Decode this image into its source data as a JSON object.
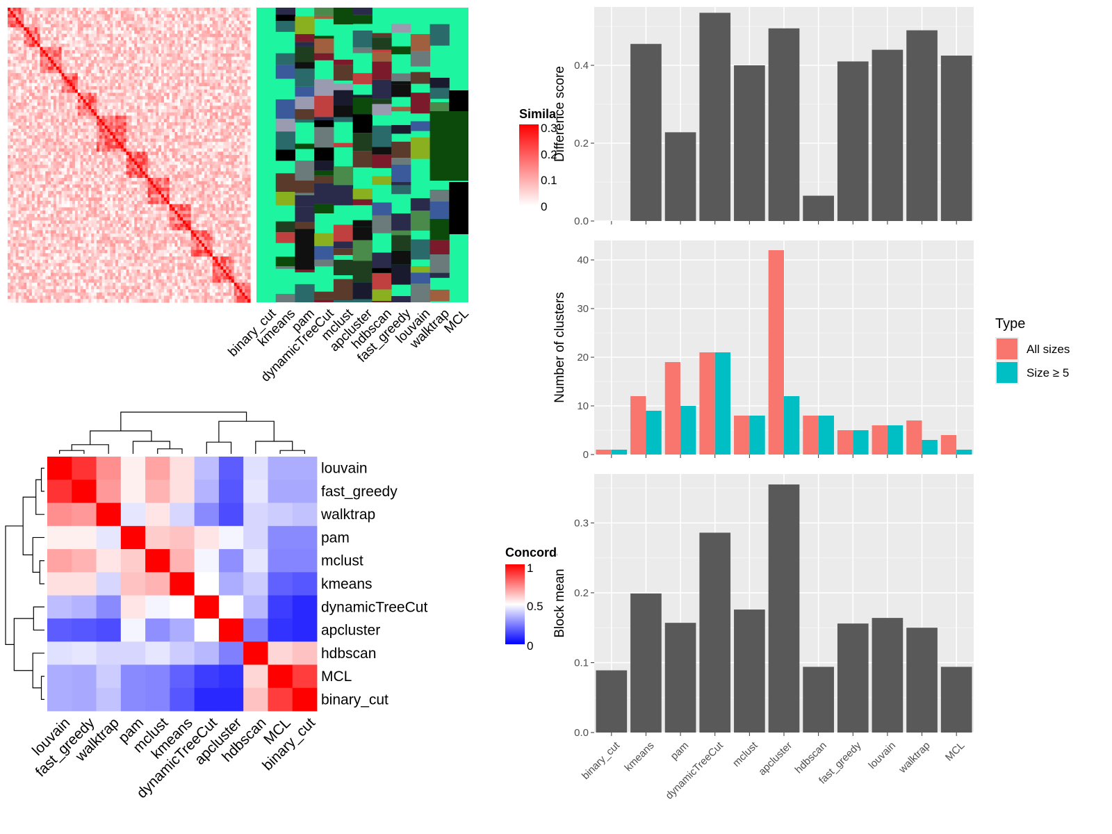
{
  "similarity_legend": {
    "title": "Similarity",
    "ticks": [
      "0.3",
      "0.2",
      "0.1",
      "0"
    ]
  },
  "concordance_legend": {
    "title": "Concordance",
    "ticks": [
      "1",
      "0.5",
      "0"
    ]
  },
  "cluster_methods_columns": [
    "binary_cut",
    "kmeans",
    "pam",
    "dynamicTreeCut",
    "mclust",
    "apcluster",
    "hdbscan",
    "fast_greedy",
    "louvain",
    "walktrap",
    "MCL"
  ],
  "chart_data": [
    {
      "type": "heatmap",
      "title": "",
      "legend_title": "Similarity",
      "color_range": [
        0,
        0.3
      ],
      "colors": {
        "low": "#ffffff",
        "high": "#ff0000"
      }
    },
    {
      "type": "heatmap",
      "title": "",
      "columns": [
        "binary_cut",
        "kmeans",
        "pam",
        "dynamicTreeCut",
        "mclust",
        "apcluster",
        "hdbscan",
        "fast_greedy",
        "louvain",
        "walktrap",
        "MCL"
      ],
      "default_color": "#1ef5a0"
    },
    {
      "type": "heatmap",
      "title": "",
      "legend_title": "Concordance",
      "color_range": [
        0,
        1
      ],
      "colors": {
        "low": "#0000ff",
        "mid": "#ffffff",
        "high": "#ff0000"
      },
      "rows": [
        "louvain",
        "fast_greedy",
        "walktrap",
        "pam",
        "mclust",
        "kmeans",
        "dynamicTreeCut",
        "apcluster",
        "hdbscan",
        "MCL",
        "binary_cut"
      ],
      "columns": [
        "louvain",
        "fast_greedy",
        "walktrap",
        "pam",
        "mclust",
        "kmeans",
        "dynamicTreeCut",
        "apcluster",
        "hdbscan",
        "MCL",
        "binary_cut"
      ],
      "values": [
        [
          1.0,
          0.9,
          0.72,
          0.53,
          0.68,
          0.56,
          0.37,
          0.18,
          0.44,
          0.34,
          0.34
        ],
        [
          0.9,
          1.0,
          0.7,
          0.53,
          0.65,
          0.56,
          0.35,
          0.17,
          0.45,
          0.33,
          0.33
        ],
        [
          0.72,
          0.7,
          1.0,
          0.45,
          0.55,
          0.42,
          0.27,
          0.15,
          0.42,
          0.4,
          0.38
        ],
        [
          0.53,
          0.53,
          0.45,
          1.0,
          0.6,
          0.62,
          0.55,
          0.48,
          0.42,
          0.27,
          0.27
        ],
        [
          0.68,
          0.65,
          0.55,
          0.6,
          1.0,
          0.65,
          0.48,
          0.28,
          0.45,
          0.26,
          0.26
        ],
        [
          0.56,
          0.56,
          0.42,
          0.62,
          0.65,
          1.0,
          0.5,
          0.34,
          0.4,
          0.19,
          0.17
        ],
        [
          0.37,
          0.35,
          0.27,
          0.55,
          0.48,
          0.5,
          1.0,
          0.5,
          0.36,
          0.12,
          0.08
        ],
        [
          0.18,
          0.17,
          0.15,
          0.48,
          0.28,
          0.34,
          0.5,
          1.0,
          0.25,
          0.1,
          0.08
        ],
        [
          0.44,
          0.45,
          0.42,
          0.42,
          0.45,
          0.4,
          0.36,
          0.25,
          1.0,
          0.58,
          0.62
        ],
        [
          0.34,
          0.33,
          0.4,
          0.27,
          0.26,
          0.19,
          0.12,
          0.1,
          0.58,
          1.0,
          0.88
        ],
        [
          0.34,
          0.33,
          0.38,
          0.27,
          0.26,
          0.17,
          0.08,
          0.08,
          0.62,
          0.88,
          1.0
        ]
      ]
    },
    {
      "type": "bar",
      "title": "",
      "xlabel": "",
      "ylabel": "Difference score",
      "categories": [
        "binary_cut",
        "kmeans",
        "pam",
        "dynamicTreeCut",
        "mclust",
        "apcluster",
        "hdbscan",
        "fast_greedy",
        "louvain",
        "walktrap",
        "MCL"
      ],
      "values": [
        0.0,
        0.455,
        0.228,
        0.535,
        0.4,
        0.495,
        0.065,
        0.41,
        0.44,
        0.49,
        0.425
      ],
      "ylim": [
        0,
        0.55
      ],
      "yticks": [
        "0.0",
        "0.2",
        "0.4"
      ],
      "color": "#595959"
    },
    {
      "type": "bar",
      "title": "",
      "xlabel": "",
      "ylabel": "Number of clusters",
      "categories": [
        "binary_cut",
        "kmeans",
        "pam",
        "dynamicTreeCut",
        "mclust",
        "apcluster",
        "hdbscan",
        "fast_greedy",
        "louvain",
        "walktrap",
        "MCL"
      ],
      "series": [
        {
          "name": "All sizes",
          "color": "#f8766d",
          "values": [
            1,
            12,
            19,
            21,
            8,
            42,
            8,
            5,
            6,
            7,
            4
          ]
        },
        {
          "name": "Size ≥ 5",
          "color": "#00bfc4",
          "values": [
            1,
            9,
            10,
            21,
            8,
            12,
            8,
            5,
            6,
            3,
            1
          ]
        }
      ],
      "ylim": [
        0,
        44
      ],
      "yticks": [
        "0",
        "10",
        "20",
        "30",
        "40"
      ],
      "legend_title": "Type",
      "legend_position": "right"
    },
    {
      "type": "bar",
      "title": "",
      "xlabel": "",
      "ylabel": "Block mean",
      "categories": [
        "binary_cut",
        "kmeans",
        "pam",
        "dynamicTreeCut",
        "mclust",
        "apcluster",
        "hdbscan",
        "fast_greedy",
        "louvain",
        "walktrap",
        "MCL"
      ],
      "values": [
        0.089,
        0.199,
        0.157,
        0.286,
        0.176,
        0.355,
        0.094,
        0.156,
        0.164,
        0.15,
        0.094
      ],
      "ylim": [
        0,
        0.37
      ],
      "yticks": [
        "0.0",
        "0.1",
        "0.2",
        "0.3"
      ],
      "color": "#595959"
    }
  ]
}
